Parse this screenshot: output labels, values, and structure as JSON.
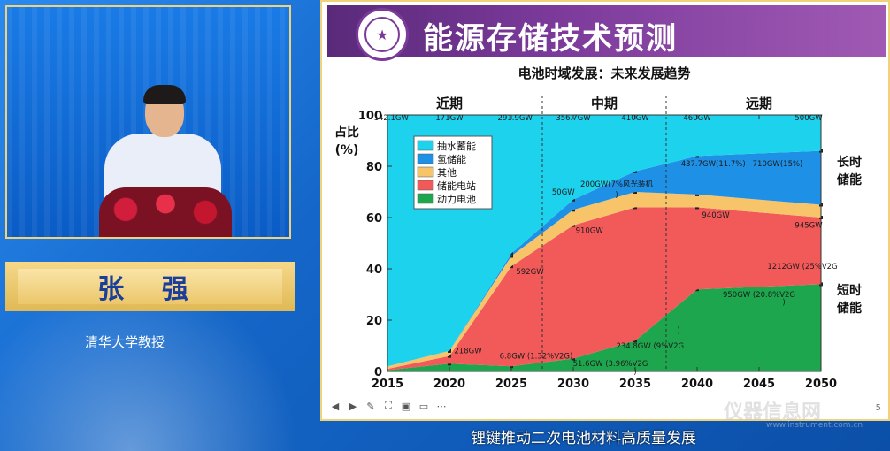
{
  "speaker": {
    "name": "张 强",
    "title": "清华大学教授"
  },
  "slide": {
    "title": "能源存储技术预测",
    "logo_glyph": "★",
    "page_number": "5"
  },
  "caption": "锂键推动二次电池材料高质量发展",
  "watermark": {
    "main": "仪器信息网",
    "sub": "www.instrument.com.cn"
  },
  "colors": {
    "pumped_hydro": "#1cd2ec",
    "hydrogen": "#1e90e6",
    "other": "#f7c46a",
    "station": "#f25a5a",
    "power": "#1ea64e",
    "header_purple": "#7b3a9a"
  },
  "chart_data": {
    "type": "area",
    "title": "电池时域发展：未来发展趋势",
    "ylabel": "占比\n(%)",
    "ylabel_lines": [
      "占比",
      "(%)"
    ],
    "xlabel": "",
    "x": [
      2015,
      2020,
      2025,
      2030,
      2035,
      2040,
      2050
    ],
    "xticks": [
      "2015",
      "2020",
      "2025",
      "2030",
      "2035",
      "2040",
      "2045",
      "2050"
    ],
    "yticks": [
      "0",
      "20",
      "40",
      "60",
      "80",
      "100"
    ],
    "xlim": [
      2015,
      2050
    ],
    "ylim": [
      0,
      100
    ],
    "stacked": true,
    "series": [
      {
        "name": "动力电池",
        "color_key": "power",
        "values": [
          0.5,
          3,
          2,
          5,
          12,
          32,
          34
        ]
      },
      {
        "name": "储能电站",
        "color_key": "station",
        "values": [
          0.5,
          3,
          39,
          52,
          52,
          32,
          26
        ]
      },
      {
        "name": "其他",
        "color_key": "other",
        "values": [
          1,
          2,
          4,
          6,
          6,
          5,
          5
        ]
      },
      {
        "name": "氢储能",
        "color_key": "hydrogen",
        "values": [
          0,
          0,
          1,
          4,
          8,
          15,
          21
        ]
      },
      {
        "name": "抽水蓄能",
        "color_key": "pumped_hydro",
        "values": [
          98,
          92,
          54,
          33,
          22,
          16,
          14
        ]
      }
    ],
    "legend_order": [
      "抽水蓄能",
      "氢储能",
      "其他",
      "储能电站",
      "动力电池"
    ],
    "legend_position": "top-left",
    "periods": [
      {
        "label": "近期",
        "x_center": 2020
      },
      {
        "label": "中期",
        "x_center": 2032.5
      },
      {
        "label": "远期",
        "x_center": 2045
      }
    ],
    "period_dividers": [
      2027.5,
      2037.5
    ],
    "side_labels": [
      {
        "lines": [
          "长时",
          "储能"
        ],
        "y": 80
      },
      {
        "lines": [
          "短时",
          "储能"
        ],
        "y": 30
      }
    ],
    "annotations": [
      {
        "text": "142.1GW",
        "x": 2015.3,
        "y": 98
      },
      {
        "text": "171GW",
        "x": 2020,
        "y": 98
      },
      {
        "text": "291.9GW",
        "x": 2025.3,
        "y": 98
      },
      {
        "text": "356.7GW",
        "x": 2030,
        "y": 98
      },
      {
        "text": "410GW",
        "x": 2035,
        "y": 98
      },
      {
        "text": "460GW",
        "x": 2040,
        "y": 98
      },
      {
        "text": "500GW",
        "x": 2049,
        "y": 98
      },
      {
        "text": "50GW",
        "x": 2029.2,
        "y": 69
      },
      {
        "text": "200GW(7%风光装机",
        "x": 2033.5,
        "y": 72
      },
      {
        "text": ")",
        "x": 2033.5,
        "y": 68
      },
      {
        "text": "437.7GW(11.7%)",
        "x": 2041.3,
        "y": 80
      },
      {
        "text": "710GW(15%)",
        "x": 2046.5,
        "y": 80
      },
      {
        "text": "592GW",
        "x": 2026.5,
        "y": 38
      },
      {
        "text": "910GW",
        "x": 2031.3,
        "y": 54
      },
      {
        "text": "940GW",
        "x": 2041.5,
        "y": 60
      },
      {
        "text": "945GW",
        "x": 2049,
        "y": 56
      },
      {
        "text": "218GW",
        "x": 2021.5,
        "y": 7
      },
      {
        "text": "6.8GW (1.32%V2G)",
        "x": 2027,
        "y": 5
      },
      {
        "text": "51.6GW (3.96%V2G",
        "x": 2033,
        "y": 2
      },
      {
        "text": ")",
        "x": 2035,
        "y": -1
      },
      {
        "text": "234.8GW (9%V2G",
        "x": 2036.2,
        "y": 9
      },
      {
        "text": ")",
        "x": 2038.5,
        "y": 15
      },
      {
        "text": "950GW (20.8%V2G",
        "x": 2045,
        "y": 29
      },
      {
        "text": ")",
        "x": 2047,
        "y": 26
      },
      {
        "text": "1212GW (25%V2G",
        "x": 2048.5,
        "y": 40
      }
    ]
  }
}
